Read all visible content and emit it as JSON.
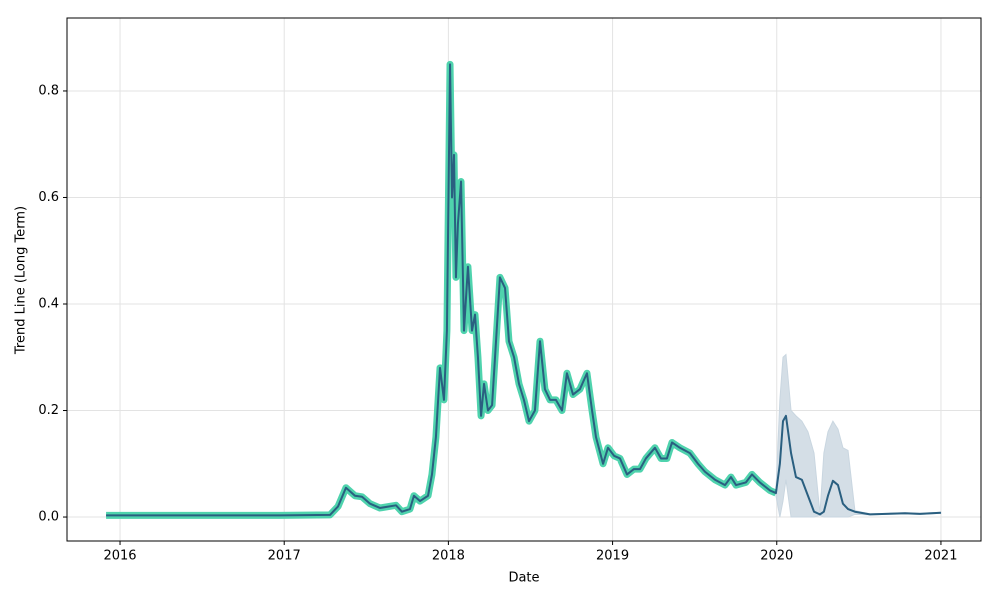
{
  "chart_data": {
    "type": "line",
    "xlabel": "Date",
    "ylabel": "Trend Line (Long Term)",
    "x": [
      2015.915,
      2016.487,
      2016.974,
      2017.279,
      2017.328,
      2017.376,
      2017.431,
      2017.474,
      2017.523,
      2017.583,
      2017.681,
      2017.717,
      2017.766,
      2017.79,
      2017.827,
      2017.876,
      2017.9,
      2017.924,
      2017.949,
      2017.973,
      2017.991,
      2018.01,
      2018.022,
      2018.034,
      2018.046,
      2018.058,
      2018.077,
      2018.095,
      2018.119,
      2018.144,
      2018.162,
      2018.18,
      2018.199,
      2018.217,
      2018.241,
      2018.266,
      2018.29,
      2018.314,
      2018.345,
      2018.369,
      2018.4,
      2018.43,
      2018.46,
      2018.491,
      2018.527,
      2018.558,
      2018.588,
      2018.619,
      2018.655,
      2018.692,
      2018.722,
      2018.759,
      2018.801,
      2018.844,
      2018.875,
      2018.899,
      2018.942,
      2018.972,
      2019.009,
      2019.045,
      2019.088,
      2019.13,
      2019.167,
      2019.203,
      2019.258,
      2019.295,
      2019.331,
      2019.362,
      2019.41,
      2019.471,
      2019.52,
      2019.563,
      2019.624,
      2019.685,
      2019.721,
      2019.752,
      2019.812,
      2019.849,
      2019.897,
      2019.958,
      2019.995,
      2020.019,
      2020.038,
      2020.056,
      2020.087,
      2020.117,
      2020.153,
      2020.19,
      2020.227,
      2020.263,
      2020.287,
      2020.312,
      2020.342,
      2020.373,
      2020.403,
      2020.434,
      2020.476,
      2020.568,
      2020.781,
      2020.872,
      2021.0
    ],
    "series": [
      {
        "color": "#4fd3ad",
        "values": [
          0.003,
          0.003,
          0.003,
          0.004,
          0.02,
          0.055,
          0.04,
          0.038,
          0.025,
          0.017,
          0.022,
          0.01,
          0.015,
          0.04,
          0.03,
          0.04,
          0.08,
          0.15,
          0.28,
          0.22,
          0.35,
          0.85,
          0.6,
          0.68,
          0.45,
          0.55,
          0.63,
          0.35,
          0.47,
          0.35,
          0.38,
          0.3,
          0.19,
          0.25,
          0.2,
          0.21,
          0.33,
          0.45,
          0.43,
          0.33,
          0.3,
          0.25,
          0.22,
          0.18,
          0.2,
          0.33,
          0.24,
          0.22,
          0.22,
          0.2,
          0.27,
          0.23,
          0.24,
          0.27,
          0.2,
          0.15,
          0.1,
          0.13,
          0.115,
          0.11,
          0.08,
          0.09,
          0.09,
          0.11,
          0.13,
          0.11,
          0.11,
          0.14,
          0.13,
          0.12,
          0.1,
          0.085,
          0.07,
          0.06,
          0.075,
          0.06,
          0.065,
          0.08,
          0.065,
          0.05,
          0.045,
          null,
          null,
          null,
          null,
          null,
          null,
          null,
          null,
          null,
          null,
          null,
          null,
          null,
          null,
          null,
          null,
          null,
          null,
          null,
          null
        ]
      },
      {
        "color": "#2a5f80",
        "values": [
          0.003,
          0.003,
          0.003,
          0.004,
          0.02,
          0.055,
          0.04,
          0.038,
          0.025,
          0.017,
          0.022,
          0.01,
          0.015,
          0.04,
          0.03,
          0.04,
          0.08,
          0.15,
          0.28,
          0.22,
          0.35,
          0.85,
          0.6,
          0.68,
          0.45,
          0.55,
          0.63,
          0.35,
          0.47,
          0.35,
          0.38,
          0.3,
          0.19,
          0.25,
          0.2,
          0.21,
          0.33,
          0.45,
          0.43,
          0.33,
          0.3,
          0.25,
          0.22,
          0.18,
          0.2,
          0.33,
          0.24,
          0.22,
          0.22,
          0.2,
          0.27,
          0.23,
          0.24,
          0.27,
          0.2,
          0.15,
          0.1,
          0.13,
          0.115,
          0.11,
          0.08,
          0.09,
          0.09,
          0.11,
          0.13,
          0.11,
          0.11,
          0.14,
          0.13,
          0.12,
          0.1,
          0.085,
          0.07,
          0.06,
          0.075,
          0.06,
          0.065,
          0.08,
          0.065,
          0.05,
          0.045,
          0.1,
          0.18,
          0.19,
          0.12,
          0.075,
          0.07,
          0.04,
          0.01,
          0.005,
          0.01,
          0.04,
          0.068,
          0.06,
          0.025,
          0.015,
          0.01,
          0.005,
          0.007,
          0.006,
          0.008
        ]
      }
    ],
    "band": {
      "color": "#c9d6e0",
      "lower": [
        null,
        null,
        null,
        null,
        null,
        null,
        null,
        null,
        null,
        null,
        null,
        null,
        null,
        null,
        null,
        null,
        null,
        null,
        null,
        null,
        null,
        null,
        null,
        null,
        null,
        null,
        null,
        null,
        null,
        null,
        null,
        null,
        null,
        null,
        null,
        null,
        null,
        null,
        null,
        null,
        null,
        null,
        null,
        null,
        null,
        null,
        null,
        null,
        null,
        null,
        null,
        null,
        null,
        null,
        null,
        null,
        null,
        null,
        null,
        null,
        null,
        null,
        null,
        null,
        null,
        null,
        null,
        null,
        null,
        null,
        null,
        null,
        null,
        null,
        null,
        null,
        null,
        null,
        null,
        null,
        0.04,
        0.0,
        0.03,
        0.07,
        0.0,
        0.0,
        0.0,
        0.0,
        0.0,
        0.003,
        0.0,
        0.0,
        0.0,
        0.0,
        0.0,
        0.0,
        0.005,
        0.004,
        0.006,
        0.005,
        0.007
      ],
      "upper": [
        null,
        null,
        null,
        null,
        null,
        null,
        null,
        null,
        null,
        null,
        null,
        null,
        null,
        null,
        null,
        null,
        null,
        null,
        null,
        null,
        null,
        null,
        null,
        null,
        null,
        null,
        null,
        null,
        null,
        null,
        null,
        null,
        null,
        null,
        null,
        null,
        null,
        null,
        null,
        null,
        null,
        null,
        null,
        null,
        null,
        null,
        null,
        null,
        null,
        null,
        null,
        null,
        null,
        null,
        null,
        null,
        null,
        null,
        null,
        null,
        null,
        null,
        null,
        null,
        null,
        null,
        null,
        null,
        null,
        null,
        null,
        null,
        null,
        null,
        null,
        null,
        null,
        null,
        null,
        null,
        0.05,
        0.22,
        0.3,
        0.305,
        0.2,
        0.19,
        0.18,
        0.16,
        0.12,
        0.007,
        0.12,
        0.16,
        0.18,
        0.165,
        0.13,
        0.125,
        0.012,
        0.006,
        0.008,
        0.007,
        0.009
      ]
    },
    "xlim": [
      2015.677,
      2021.244
    ],
    "ylim": [
      -0.045,
      0.937
    ],
    "xticks": [
      2016,
      2017,
      2018,
      2019,
      2020,
      2021
    ],
    "yticks": [
      {
        "value": 0,
        "label": "0.0"
      },
      0.2,
      0.4,
      0.6,
      0.8
    ],
    "grid": true
  }
}
